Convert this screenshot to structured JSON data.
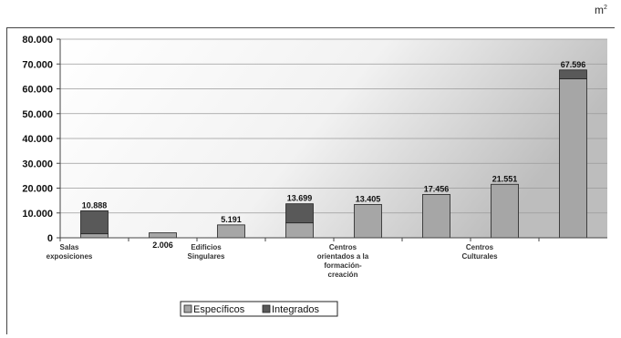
{
  "unit": {
    "base": "m",
    "exp": "2"
  },
  "chart_data": {
    "type": "bar",
    "stacked": true,
    "categories": [
      "Salas exposiciones",
      "",
      "Edificios Singulares",
      "",
      "Centros orientados a la formación-creación",
      "",
      "Centros Culturales",
      ""
    ],
    "series": [
      {
        "name": "Específicos",
        "color": "#a6a6a6",
        "values": [
          1600,
          2006,
          5191,
          6000,
          13405,
          17456,
          21551,
          64000
        ]
      },
      {
        "name": "Integrados",
        "color": "#595959",
        "values": [
          9288,
          0,
          0,
          7699,
          0,
          0,
          0,
          3596
        ]
      }
    ],
    "data_labels": [
      "10.888",
      "2.006",
      "5.191",
      "13.699",
      "13.405",
      "17.456",
      "21.551",
      "67.596"
    ],
    "y_ticks": [
      "0",
      "10.000",
      "20.000",
      "30.000",
      "40.000",
      "50.000",
      "60.000",
      "70.000",
      "80.000"
    ],
    "ylim": [
      0,
      80000
    ],
    "grid": true,
    "legend_position": "bottom"
  }
}
